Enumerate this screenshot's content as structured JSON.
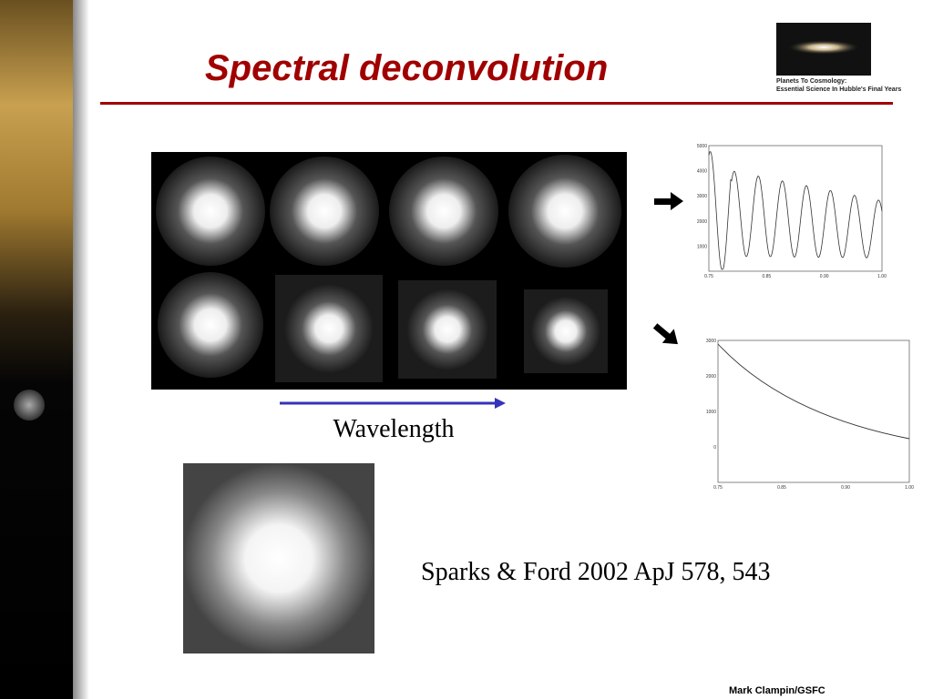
{
  "slide": {
    "title": "Spectral deconvolution",
    "logo": {
      "line1": "Planets To Cosmology:",
      "line2": "Essential Science In Hubble's Final Years"
    },
    "arrow_label": "Wavelength",
    "citation": "Sparks & Ford 2002 ApJ 578, 543",
    "footer": "Mark Clampin/GSFC",
    "plot_top": {
      "y_labels": [
        "5000",
        "4000",
        "3000",
        "2000",
        "1000"
      ],
      "x_labels": [
        "0.75",
        "0.85",
        "0.90",
        "1.00"
      ]
    },
    "plot_bottom": {
      "y_labels": [
        "3000",
        "2000",
        "1000",
        "0"
      ],
      "x_labels": [
        "0.75",
        "0.85",
        "0.90",
        "1.00"
      ]
    }
  }
}
